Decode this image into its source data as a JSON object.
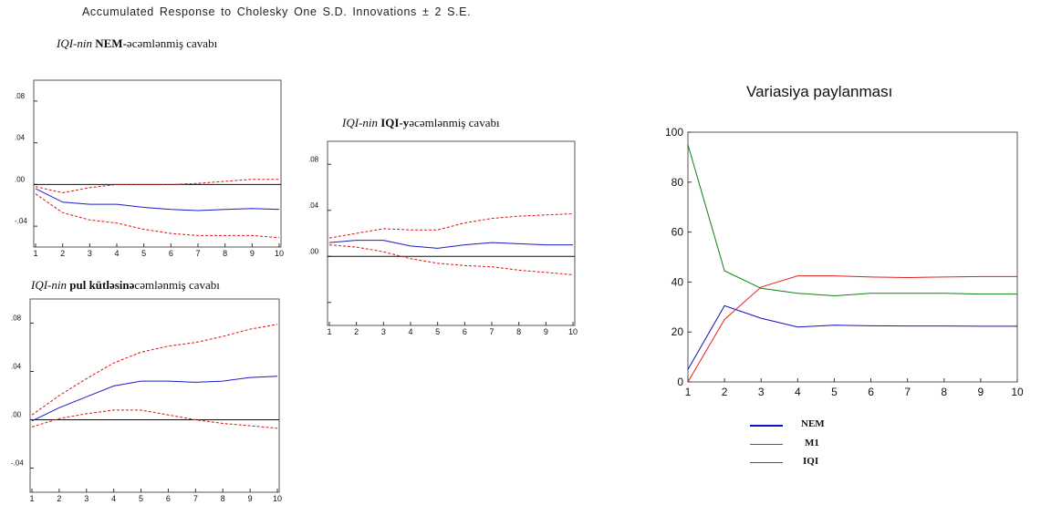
{
  "figure": {
    "main_title": "Accumulated Response to Cholesky One S.D. Innovations ± 2 S.E."
  },
  "panels": {
    "p1": {
      "title_pre": "IQI-nin ",
      "title_bold": "NEM-",
      "title_post": "əcəmlənmiş cavabı"
    },
    "p2": {
      "title_pre": "IQI-nin ",
      "title_bold": "IQI-y",
      "title_post": "əcəmlənmiş cavabı"
    },
    "p3": {
      "title_pre": "IQI-nin ",
      "title_bold": "pul kütləsinə",
      "title_post": "cəmlənmiş cavabı"
    }
  },
  "variance": {
    "title": "Variasiya paylanması",
    "legend": [
      "NEM",
      "M1",
      "IQI"
    ]
  },
  "colors": {
    "response": "#1c1cc8",
    "band": "#e01010",
    "zero": "#111111",
    "nem": "#1010c0",
    "m1": "#e02020",
    "iqi": "#108010"
  },
  "chart_data": [
    {
      "type": "line",
      "title": "IQI-nin NEM-əcəmlənmiş cavabı",
      "x": [
        1,
        2,
        3,
        4,
        5,
        6,
        7,
        8,
        9,
        10
      ],
      "ylim": [
        -0.06,
        0.1
      ],
      "yticks": [
        -0.04,
        0.0,
        0.04,
        0.08
      ],
      "ytick_labels": [
        "-.04",
        ".00",
        ".04",
        ".08"
      ],
      "series": [
        {
          "role": "response",
          "values": [
            -0.004,
            -0.017,
            -0.019,
            -0.019,
            -0.022,
            -0.024,
            -0.025,
            -0.024,
            -0.023,
            -0.024
          ]
        },
        {
          "role": "upper",
          "values": [
            -0.002,
            -0.008,
            -0.003,
            0.0,
            0.0,
            0.0,
            0.001,
            0.003,
            0.005,
            0.005
          ]
        },
        {
          "role": "lower",
          "values": [
            -0.009,
            -0.027,
            -0.034,
            -0.037,
            -0.043,
            -0.047,
            -0.049,
            -0.049,
            -0.049,
            -0.051
          ]
        }
      ]
    },
    {
      "type": "line",
      "title": "IQI-nin IQI-yəcəmlənmiş cavabı",
      "x": [
        1,
        2,
        3,
        4,
        5,
        6,
        7,
        8,
        9,
        10
      ],
      "ylim": [
        -0.06,
        0.1
      ],
      "yticks": [
        -0.04,
        0.0,
        0.04,
        0.08
      ],
      "ytick_labels": [
        "",
        ".00",
        ".04",
        ".08"
      ],
      "series": [
        {
          "role": "response",
          "values": [
            0.012,
            0.014,
            0.014,
            0.009,
            0.007,
            0.01,
            0.012,
            0.011,
            0.01,
            0.01
          ]
        },
        {
          "role": "upper",
          "values": [
            0.016,
            0.02,
            0.024,
            0.023,
            0.023,
            0.029,
            0.033,
            0.035,
            0.036,
            0.037
          ]
        },
        {
          "role": "lower",
          "values": [
            0.01,
            0.008,
            0.004,
            -0.002,
            -0.006,
            -0.008,
            -0.009,
            -0.012,
            -0.014,
            -0.016
          ]
        }
      ]
    },
    {
      "type": "line",
      "title": "IQI-nin pul kütləsinəcəmlənmiş cavabı",
      "x": [
        1,
        2,
        3,
        4,
        5,
        6,
        7,
        8,
        9,
        10
      ],
      "ylim": [
        -0.06,
        0.1
      ],
      "yticks": [
        -0.04,
        0.0,
        0.04,
        0.08
      ],
      "ytick_labels": [
        "-.04",
        ".00",
        ".04",
        ".08"
      ],
      "series": [
        {
          "role": "response",
          "values": [
            -0.001,
            0.01,
            0.019,
            0.028,
            0.032,
            0.032,
            0.031,
            0.032,
            0.035,
            0.036
          ]
        },
        {
          "role": "upper",
          "values": [
            0.004,
            0.02,
            0.034,
            0.047,
            0.056,
            0.061,
            0.064,
            0.069,
            0.075,
            0.079
          ]
        },
        {
          "role": "lower",
          "values": [
            -0.006,
            0.001,
            0.005,
            0.008,
            0.008,
            0.004,
            0.0,
            -0.003,
            -0.005,
            -0.007
          ]
        }
      ]
    },
    {
      "type": "line",
      "title": "Variasiya paylanması",
      "x": [
        1,
        2,
        3,
        4,
        5,
        6,
        7,
        8,
        9,
        10
      ],
      "ylim": [
        0,
        100
      ],
      "yticks": [
        0,
        20,
        40,
        60,
        80,
        100
      ],
      "ytick_labels": [
        "0",
        "20",
        "40",
        "60",
        "80",
        "100"
      ],
      "series": [
        {
          "name": "NEM",
          "values": [
            5,
            30.5,
            25.5,
            22,
            22.7,
            22.5,
            22.4,
            22.4,
            22.3,
            22.3
          ]
        },
        {
          "name": "M1",
          "values": [
            0,
            25,
            38,
            42.5,
            42.5,
            42,
            41.8,
            42,
            42.2,
            42.2
          ]
        },
        {
          "name": "IQI",
          "values": [
            95,
            44.5,
            37.5,
            35.5,
            34.5,
            35.5,
            35.5,
            35.5,
            35.2,
            35.2
          ]
        }
      ]
    }
  ]
}
